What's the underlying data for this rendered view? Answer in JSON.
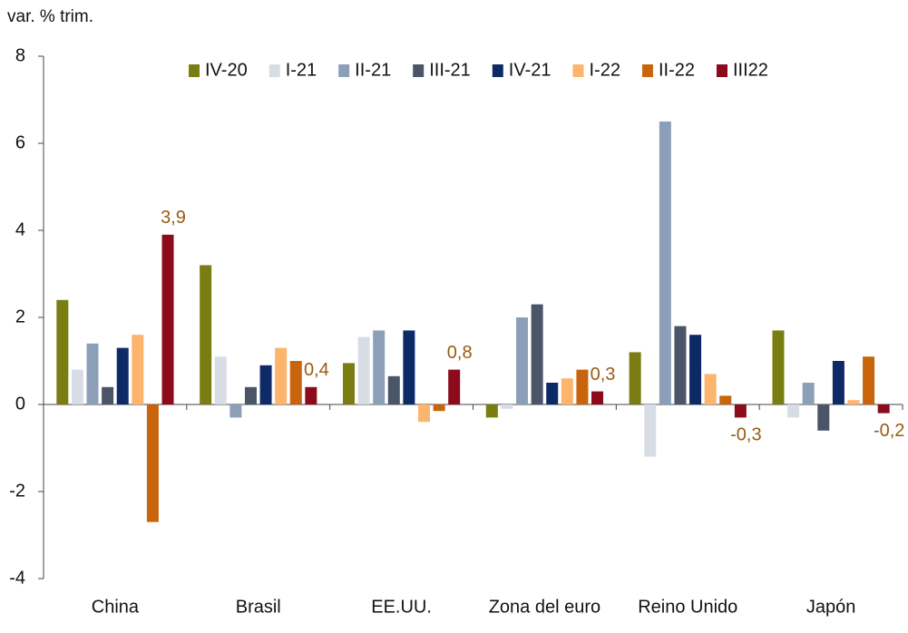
{
  "chart_data": {
    "type": "bar",
    "y_label": "var. % trim.",
    "categories": [
      "China",
      "Brasil",
      "EE.UU.",
      "Zona del euro",
      "Reino Unido",
      "Japón"
    ],
    "series": [
      {
        "name": "IV-20",
        "color": "#7a7d12",
        "values": [
          2.4,
          3.2,
          0.95,
          -0.3,
          1.2,
          1.7
        ]
      },
      {
        "name": "I-21",
        "color": "#d8dde5",
        "values": [
          0.8,
          1.1,
          1.55,
          -0.1,
          -1.2,
          -0.3
        ]
      },
      {
        "name": "II-21",
        "color": "#8c9fb9",
        "values": [
          1.4,
          -0.3,
          1.7,
          2.0,
          6.5,
          0.5
        ]
      },
      {
        "name": "III-21",
        "color": "#4a5568",
        "values": [
          0.4,
          0.4,
          0.65,
          2.3,
          1.8,
          -0.6
        ]
      },
      {
        "name": "IV-21",
        "color": "#0e2a66",
        "values": [
          1.3,
          0.9,
          1.7,
          0.5,
          1.6,
          1.0
        ]
      },
      {
        "name": "I-22",
        "color": "#fdb46c",
        "values": [
          1.6,
          1.3,
          -0.4,
          0.6,
          0.7,
          0.1
        ]
      },
      {
        "name": "II-22",
        "color": "#c8650c",
        "values": [
          -2.7,
          1.0,
          -0.15,
          0.8,
          0.2,
          1.1
        ]
      },
      {
        "name": "III22",
        "color": "#8b0a1c",
        "values": [
          3.9,
          0.4,
          0.8,
          0.3,
          -0.3,
          -0.2
        ],
        "value_labels": [
          "3,9",
          "0,4",
          "0,8",
          "0,3",
          "-0,3",
          "-0,2"
        ]
      }
    ],
    "value_label_color": "#9a5a14",
    "ylim": [
      -4,
      8
    ],
    "yticks": [
      -4,
      -2,
      0,
      2,
      4,
      6,
      8
    ]
  }
}
